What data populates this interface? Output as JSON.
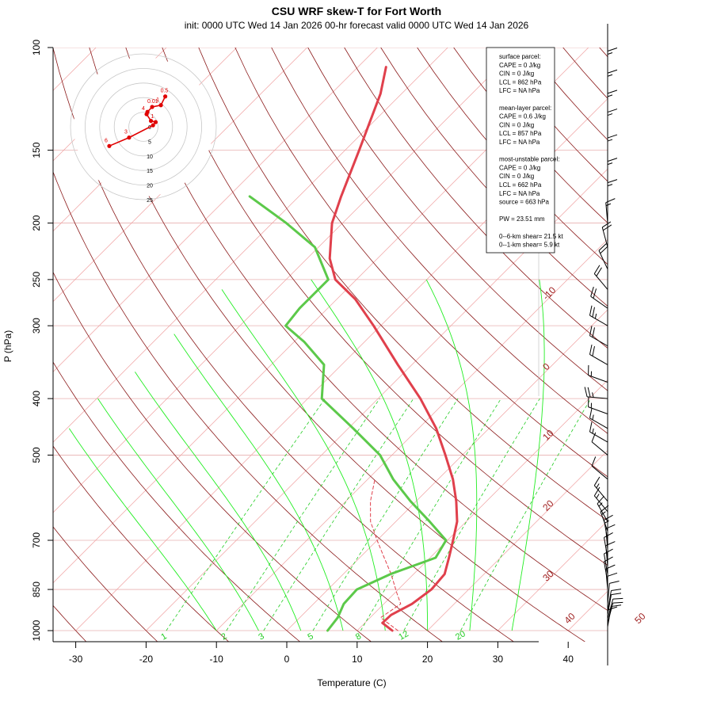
{
  "title": "CSU WRF skew-T for Fort Worth",
  "subtitle": "init: 0000 UTC Wed 14 Jan 2026     00-hr forecast valid 0000 UTC Wed 14 Jan 2026",
  "chart_data": {
    "type": "skew-t",
    "xlabel": "Temperature (C)",
    "ylabel": "P (hPa)",
    "x_ticks": [
      -30,
      -20,
      -10,
      0,
      10,
      20,
      30,
      40
    ],
    "y_ticks": [
      100,
      150,
      200,
      250,
      300,
      400,
      500,
      700,
      850,
      1000
    ],
    "ylim_hpa": [
      1000,
      100
    ],
    "pressure_scale": "log",
    "isotherm_labels": [
      -10,
      0,
      10,
      20,
      30,
      40,
      50
    ],
    "mixing_ratio_labels": [
      1,
      2,
      3,
      5,
      8,
      12,
      20
    ],
    "temperature_profile": [
      {
        "p": 1000,
        "t": 15.0
      },
      {
        "p": 970,
        "t": 12.5
      },
      {
        "p": 940,
        "t": 12.6
      },
      {
        "p": 900,
        "t": 14.0
      },
      {
        "p": 850,
        "t": 14.7
      },
      {
        "p": 800,
        "t": 14.4
      },
      {
        "p": 750,
        "t": 12.7
      },
      {
        "p": 700,
        "t": 10.8
      },
      {
        "p": 650,
        "t": 8.7
      },
      {
        "p": 600,
        "t": 5.7
      },
      {
        "p": 550,
        "t": 2.1
      },
      {
        "p": 500,
        "t": -2.4
      },
      {
        "p": 450,
        "t": -7.5
      },
      {
        "p": 400,
        "t": -14.0
      },
      {
        "p": 350,
        "t": -22.0
      },
      {
        "p": 300,
        "t": -31.0
      },
      {
        "p": 270,
        "t": -37.4
      },
      {
        "p": 250,
        "t": -43.0
      },
      {
        "p": 230,
        "t": -46.8
      },
      {
        "p": 200,
        "t": -51.5
      },
      {
        "p": 180,
        "t": -54.0
      },
      {
        "p": 150,
        "t": -58.0
      },
      {
        "p": 120,
        "t": -63.0
      },
      {
        "p": 108,
        "t": -66.0
      }
    ],
    "dewpoint_profile": [
      {
        "p": 1000,
        "t": 5.8
      },
      {
        "p": 950,
        "t": 5.4
      },
      {
        "p": 900,
        "t": 4.3
      },
      {
        "p": 850,
        "t": 4.1
      },
      {
        "p": 800,
        "t": 6.7
      },
      {
        "p": 750,
        "t": 10.8
      },
      {
        "p": 700,
        "t": 9.8
      },
      {
        "p": 650,
        "t": 4.8
      },
      {
        "p": 600,
        "t": -0.8
      },
      {
        "p": 550,
        "t": -6.4
      },
      {
        "p": 500,
        "t": -11.7
      },
      {
        "p": 450,
        "t": -19.3
      },
      {
        "p": 400,
        "t": -28.0
      },
      {
        "p": 350,
        "t": -32.5
      },
      {
        "p": 320,
        "t": -38.5
      },
      {
        "p": 300,
        "t": -43.5
      },
      {
        "p": 280,
        "t": -44.0
      },
      {
        "p": 250,
        "t": -44.0
      },
      {
        "p": 220,
        "t": -50.5
      },
      {
        "p": 200,
        "t": -58.0
      },
      {
        "p": 180,
        "t": -67.0
      }
    ],
    "parcel_profile": [
      {
        "p": 1000,
        "t": 15.8
      },
      {
        "p": 950,
        "t": 11.5
      },
      {
        "p": 900,
        "t": 12.4
      },
      {
        "p": 862,
        "t": 10.3
      },
      {
        "p": 800,
        "t": 6.8
      },
      {
        "p": 750,
        "t": 3.5
      },
      {
        "p": 700,
        "t": 0.0
      },
      {
        "p": 650,
        "t": -3.6
      },
      {
        "p": 600,
        "t": -6.5
      },
      {
        "p": 550,
        "t": -9.0
      }
    ],
    "hodograph": {
      "ring_labels": [
        0,
        5,
        10,
        15,
        20,
        25
      ],
      "points": [
        {
          "u": -11.7,
          "v": -6.6,
          "label": "6"
        },
        {
          "u": -4.9,
          "v": -3.7,
          "label": "3"
        },
        {
          "u": 3.3,
          "v": 0.5,
          "label": ""
        },
        {
          "u": 4.2,
          "v": 1.6,
          "label": "1"
        },
        {
          "u": 2.6,
          "v": 2.0,
          "label": ""
        },
        {
          "u": 1.1,
          "v": 4.3,
          "label": "4"
        },
        {
          "u": 1.4,
          "v": 5.1,
          "label": ""
        },
        {
          "u": 3.0,
          "v": 6.8,
          "label": "0.01"
        },
        {
          "u": 6.0,
          "v": 7.4,
          "label": "1"
        },
        {
          "u": 7.5,
          "v": 10.4,
          "label": "0.5"
        }
      ]
    },
    "stats_lines": [
      "surface parcel:",
      "CAPE = 0 J/kg",
      "CIN = 0 J/kg",
      "LCL = 862 hPa",
      "LFC = NA hPa",
      "",
      "mean-layer parcel:",
      "CAPE = 0.6 J/kg",
      "CIN = 0 J/kg",
      "LCL = 857 hPa",
      "LFC = NA hPa",
      "",
      "most-unstable parcel:",
      "CAPE = 0 J/kg",
      "CIN = 0 J/kg",
      "LCL = 662 hPa",
      "LFC = NA hPa",
      "source = 663 hPa",
      "",
      "PW =  23.51 mm",
      "",
      "0--6-km shear= 21.5 kt",
      "0--1-km shear= 5.9 kt"
    ],
    "wind_barbs_kt": [
      {
        "p": 1000,
        "dir": 0,
        "spd": 10
      },
      {
        "p": 985,
        "dir": 10,
        "spd": 10
      },
      {
        "p": 970,
        "dir": 15,
        "spd": 10
      },
      {
        "p": 955,
        "dir": 15,
        "spd": 10
      },
      {
        "p": 940,
        "dir": 10,
        "spd": 10
      },
      {
        "p": 925,
        "dir": 10,
        "spd": 10
      },
      {
        "p": 900,
        "dir": 5,
        "spd": 10
      },
      {
        "p": 875,
        "dir": 0,
        "spd": 10
      },
      {
        "p": 850,
        "dir": 355,
        "spd": 10
      },
      {
        "p": 825,
        "dir": 350,
        "spd": 10
      },
      {
        "p": 800,
        "dir": 350,
        "spd": 10
      },
      {
        "p": 775,
        "dir": 355,
        "spd": 10
      },
      {
        "p": 750,
        "dir": 350,
        "spd": 10
      },
      {
        "p": 725,
        "dir": 355,
        "spd": 10
      },
      {
        "p": 700,
        "dir": 350,
        "spd": 15
      },
      {
        "p": 675,
        "dir": 340,
        "spd": 15
      },
      {
        "p": 650,
        "dir": 330,
        "spd": 15
      },
      {
        "p": 625,
        "dir": 320,
        "spd": 15
      },
      {
        "p": 600,
        "dir": 320,
        "spd": 15
      },
      {
        "p": 550,
        "dir": 310,
        "spd": 10
      },
      {
        "p": 500,
        "dir": 310,
        "spd": 10
      },
      {
        "p": 475,
        "dir": 300,
        "spd": 15
      },
      {
        "p": 450,
        "dir": 300,
        "spd": 15
      },
      {
        "p": 425,
        "dir": 290,
        "spd": 15
      },
      {
        "p": 400,
        "dir": 275,
        "spd": 25
      },
      {
        "p": 375,
        "dir": 290,
        "spd": 15
      },
      {
        "p": 350,
        "dir": 300,
        "spd": 20
      },
      {
        "p": 325,
        "dir": 300,
        "spd": 20
      },
      {
        "p": 300,
        "dir": 300,
        "spd": 25
      },
      {
        "p": 280,
        "dir": 305,
        "spd": 20
      },
      {
        "p": 260,
        "dir": 320,
        "spd": 20
      },
      {
        "p": 240,
        "dir": 335,
        "spd": 20
      },
      {
        "p": 220,
        "dir": 345,
        "spd": 20
      },
      {
        "p": 200,
        "dir": 355,
        "spd": 15
      },
      {
        "p": 185,
        "dir": 360,
        "spd": 15
      },
      {
        "p": 170,
        "dir": 0,
        "spd": 15
      },
      {
        "p": 155,
        "dir": 0,
        "spd": 15
      },
      {
        "p": 140,
        "dir": 0,
        "spd": 15
      },
      {
        "p": 130,
        "dir": 0,
        "spd": 15
      },
      {
        "p": 120,
        "dir": 0,
        "spd": 15
      },
      {
        "p": 110,
        "dir": 0,
        "spd": 15
      }
    ],
    "colors": {
      "temperature": "#e0404c",
      "dewpoint": "#5cc94a",
      "parcel": "#e0404c",
      "isotherm": "#f0a0a0",
      "dry_adiabat": "#8b1a1a",
      "moist_adiabat": "#22ee22",
      "mixing_ratio": "#22cc22",
      "hodograph": "#e00000"
    }
  }
}
